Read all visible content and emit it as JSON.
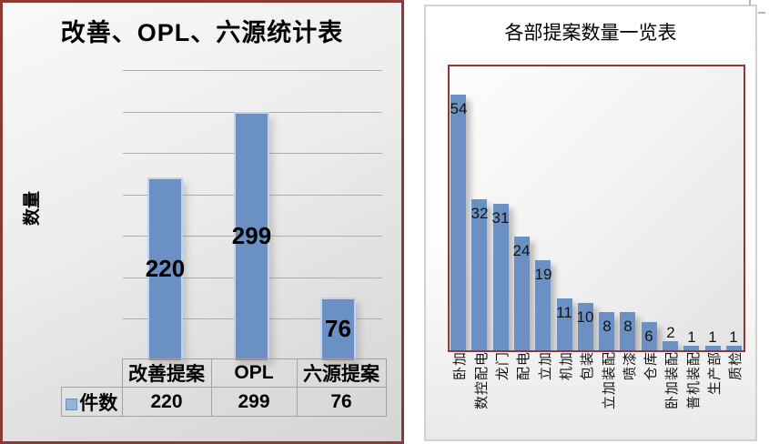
{
  "colors": {
    "bar_fill": "#6b90c3",
    "bar_stroke": "#c3d3e9",
    "legend_swatch_fill": "#95b3d7",
    "accent_border": "#8b3a37",
    "table_border": "#a2a2a2",
    "gridline": "#aeaeae"
  },
  "chart_data": [
    {
      "type": "bar",
      "title": "改善、OPL、六源统计表",
      "xlabel": "",
      "ylabel": "数量",
      "categories": [
        "改善提案",
        "OPL",
        "六源提案"
      ],
      "series": [
        {
          "name": "件数",
          "values": [
            220,
            299,
            76
          ]
        }
      ],
      "data_labels": [
        220,
        299,
        76
      ],
      "ylim": [
        0,
        350
      ],
      "gridline_step": 50,
      "grid": true,
      "legend_position": "data-table-left",
      "data_table_shown": true
    },
    {
      "type": "bar",
      "title": "各部提案数量一览表",
      "xlabel": "",
      "ylabel": "",
      "categories": [
        "卧加",
        "数控配电",
        "龙门",
        "配电",
        "立加",
        "机加",
        "包装",
        "立加装配",
        "喷漆",
        "仓库",
        "卧加装配",
        "普机装配",
        "生产部",
        "质检"
      ],
      "values": [
        54,
        32,
        31,
        24,
        19,
        11,
        10,
        8,
        8,
        6,
        2,
        1,
        1,
        1
      ],
      "data_labels": [
        54,
        32,
        31,
        24,
        19,
        11,
        10,
        8,
        8,
        6,
        2,
        1,
        1,
        1
      ],
      "ylim": [
        0,
        60
      ],
      "grid": false,
      "legend_position": "none",
      "category_label_rotation": -90
    }
  ]
}
